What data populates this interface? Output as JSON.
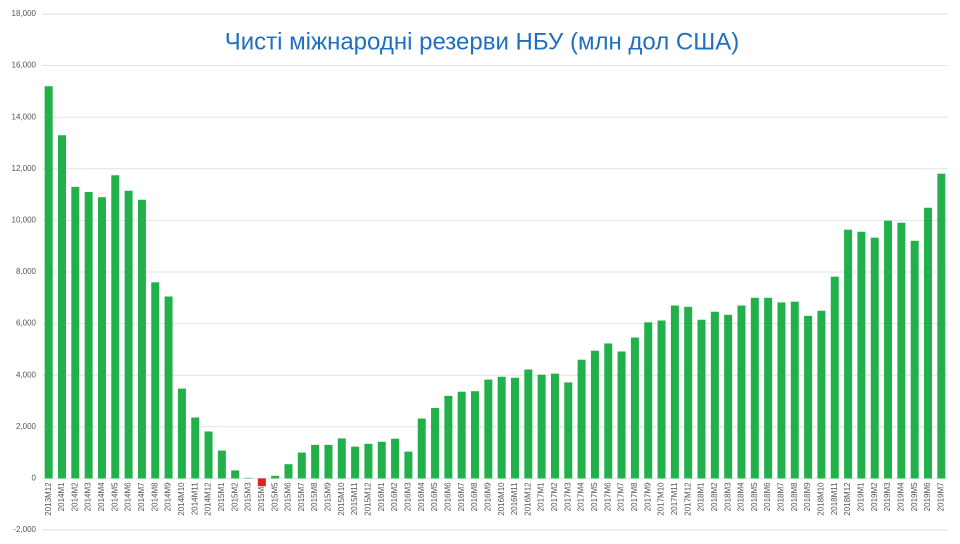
{
  "chart_data": {
    "type": "bar",
    "title": "Чисті міжнародні резерви НБУ (млн дол США)",
    "categories": [
      "2013M12",
      "2014M1",
      "2014M2",
      "2014M3",
      "2014M4",
      "2014M5",
      "2014M6",
      "2014M7",
      "2014M8",
      "2014M9",
      "2014M10",
      "2014M11",
      "2014M12",
      "2015M1",
      "2015M2",
      "2015M3",
      "2015M4",
      "2015M5",
      "2015M6",
      "2015M7",
      "2015M8",
      "2015M9",
      "2015M10",
      "2015M11",
      "2015M12",
      "2016M1",
      "2016M2",
      "2016M3",
      "2016M4",
      "2016M5",
      "2016M6",
      "2016M7",
      "2016M8",
      "2016M9",
      "2016M10",
      "2016M11",
      "2016M12",
      "2017M1",
      "2017M2",
      "2017M3",
      "2017M4",
      "2017M5",
      "2017M6",
      "2017M7",
      "2017M8",
      "2017M9",
      "2017M10",
      "2017M11",
      "2017M12",
      "2018M1",
      "2018M2",
      "2018M3",
      "2018M4",
      "2018M5",
      "2018M6",
      "2018M7",
      "2018M8",
      "2018M9",
      "2018M10",
      "2018M11",
      "2018M12",
      "2019M1",
      "2019M2",
      "2019M3",
      "2019M4",
      "2019M5",
      "2019M6",
      "2019M7"
    ],
    "values": [
      15200,
      13300,
      11300,
      11100,
      10900,
      11750,
      11150,
      10800,
      7600,
      7050,
      3480,
      2360,
      1820,
      1080,
      310,
      20,
      -300,
      100,
      550,
      1000,
      1300,
      1300,
      1550,
      1230,
      1340,
      1420,
      1540,
      1040,
      2320,
      2730,
      3200,
      3360,
      3380,
      3830,
      3940,
      3900,
      4220,
      4020,
      4060,
      3720,
      4600,
      4950,
      5230,
      4920,
      5460,
      6050,
      6120,
      6700,
      6650,
      6150,
      6460,
      6340,
      6700,
      7000,
      7000,
      6820,
      6850,
      6300,
      6500,
      7820,
      9640,
      9560,
      9330,
      9990,
      9910,
      9210,
      10490,
      11810
    ],
    "color": "#22b04b",
    "negative_color": "#e02020",
    "ylim": [
      -2000,
      18000
    ],
    "yticks": [
      {
        "value": -2000,
        "label": "-2,000"
      },
      0,
      {
        "value": 2000,
        "label": "2,000"
      },
      {
        "value": 4000,
        "label": "4,000"
      },
      {
        "value": 6000,
        "label": "6,000"
      },
      {
        "value": 8000,
        "label": "8,000"
      },
      {
        "value": 10000,
        "label": "10,000"
      },
      {
        "value": 12000,
        "label": "12,000"
      },
      {
        "value": 14000,
        "label": "14,000"
      },
      {
        "value": 16000,
        "label": "16,000"
      },
      {
        "value": 18000,
        "label": "18,000"
      }
    ],
    "grid": true
  }
}
